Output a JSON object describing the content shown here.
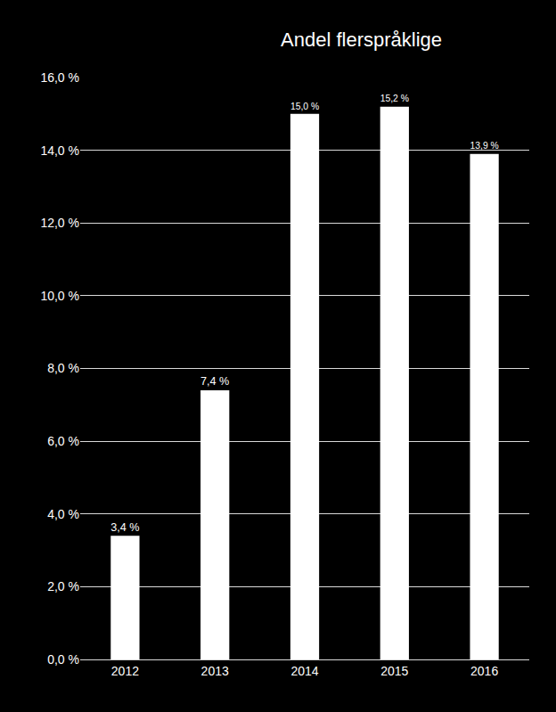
{
  "chart_data": {
    "type": "bar",
    "title": "Andel flerspråklige",
    "categories": [
      "2012",
      "2013",
      "2014",
      "2015",
      "2016"
    ],
    "values": [
      3.4,
      7.4,
      15.0,
      15.2,
      13.9
    ],
    "value_labels": [
      "3,4 %",
      "7,4 %",
      "15,0 %",
      "15,2 %",
      "13,9 %"
    ],
    "data_labels": true,
    "color": "#ffffff",
    "ylim": [
      0,
      16
    ],
    "yticks": [
      {
        "value": 0,
        "label": "0,0 %"
      },
      {
        "value": 2,
        "label": "2,0 %"
      },
      {
        "value": 4,
        "label": "4,0 %"
      },
      {
        "value": 6,
        "label": "6,0 %"
      },
      {
        "value": 8,
        "label": "8,0 %"
      },
      {
        "value": 10,
        "label": "10,0 %"
      },
      {
        "value": 12,
        "label": "12,0 %"
      },
      {
        "value": 14,
        "label": "14,0 %"
      },
      {
        "value": 16,
        "label": "16,0 %"
      }
    ],
    "grid": true
  }
}
